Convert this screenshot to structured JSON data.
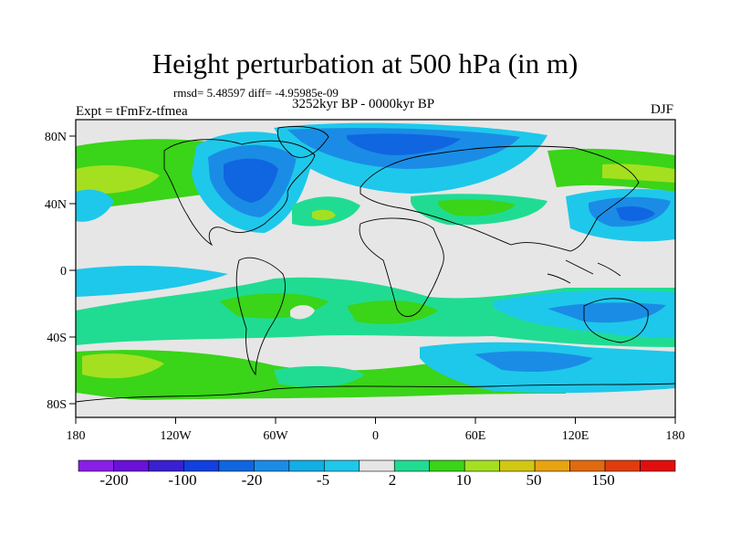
{
  "title": "Height perturbation at 500 hPa (in m)",
  "stats": "rmsd= 5.48597 diff= -4.95985e-09",
  "period": "3252kyr BP - 0000kyr BP",
  "experiment": "Expt = tFmFz-tfmea",
  "season": "DJF",
  "x_ticks": [
    "180",
    "120W",
    "60W",
    "0",
    "60E",
    "120E",
    "180"
  ],
  "y_ticks": [
    "80N",
    "40N",
    "0",
    "40S",
    "80S"
  ],
  "colorbar": {
    "colors": [
      "#8a1ee8",
      "#6a10d8",
      "#3a20d0",
      "#1040e0",
      "#1066e0",
      "#1a8ce6",
      "#12aee6",
      "#1ec8ea",
      "#e6e6e6",
      "#20dc92",
      "#3ad418",
      "#a4e020",
      "#d2c812",
      "#e8a410",
      "#e26a0e",
      "#e23c0c",
      "#e20e0e"
    ],
    "labels": [
      "-200",
      "-100",
      "-20",
      "-5",
      "2",
      "10",
      "50",
      "150"
    ]
  },
  "colors": {
    "neutral": "#e6e6e6",
    "light_blue": "#1ec8ea",
    "mid_blue": "#12aee6",
    "blue": "#1a8ce6",
    "dark_blue": "#1066e0",
    "teal": "#20dc92",
    "green": "#3ad418",
    "yellow_green": "#a4e020",
    "yellow": "#d2c812"
  }
}
